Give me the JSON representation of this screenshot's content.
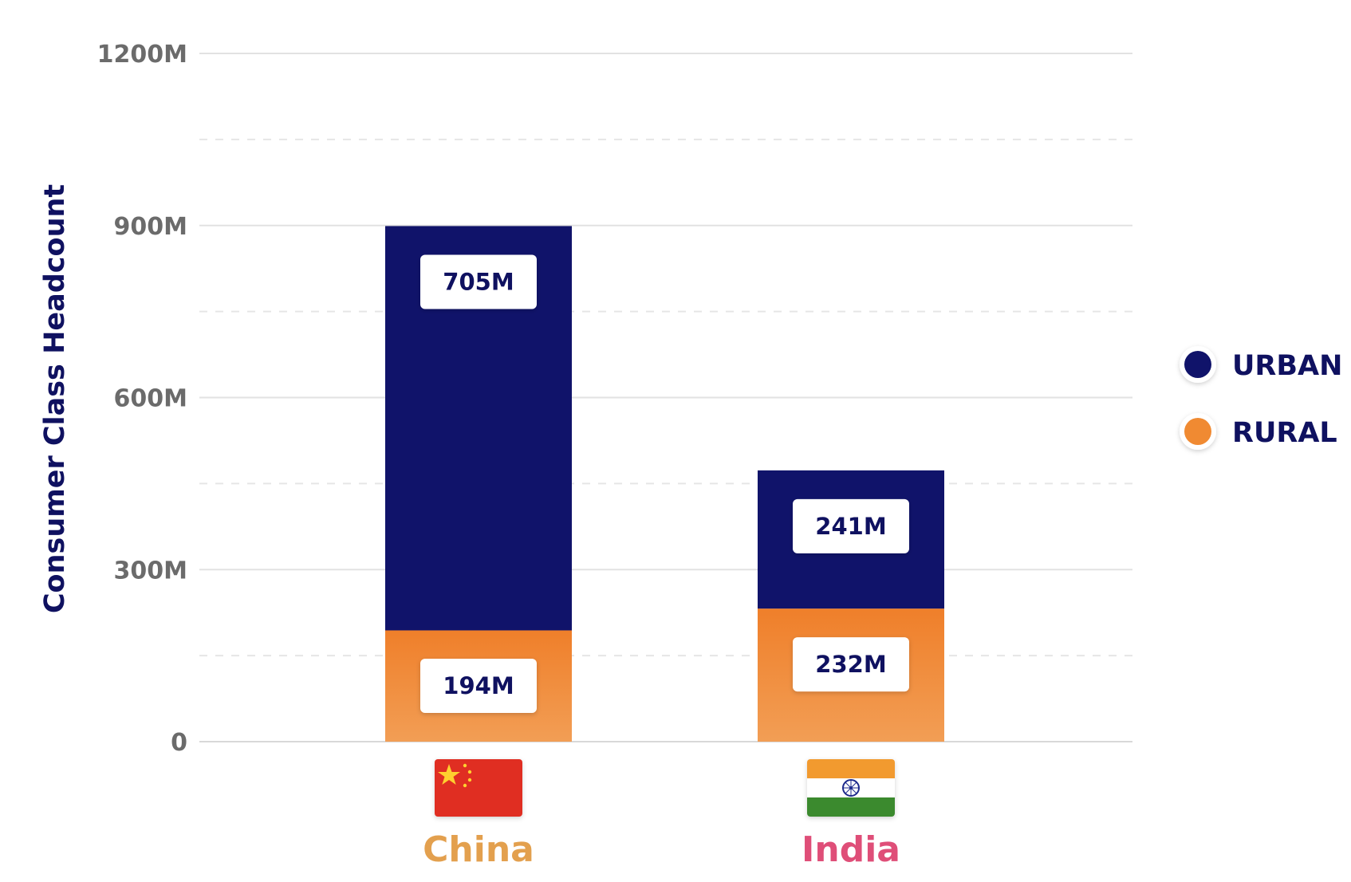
{
  "chart_data": {
    "type": "bar",
    "stacked": true,
    "ylabel": "Consumer Class Headcount",
    "ylim": [
      0,
      1200
    ],
    "y_ticks": [
      {
        "value": 0,
        "label": "0"
      },
      {
        "value": 300,
        "label": "300M"
      },
      {
        "value": 600,
        "label": "600M"
      },
      {
        "value": 900,
        "label": "900M"
      },
      {
        "value": 1200,
        "label": "1200M"
      }
    ],
    "grid": true,
    "legend_position": "right",
    "categories": [
      "China",
      "India"
    ],
    "category_colors": [
      "#e3a04e",
      "#df4e78"
    ],
    "category_icons": [
      "china-flag-icon",
      "india-flag-icon"
    ],
    "series": [
      {
        "name": "RURAL",
        "values": [
          194,
          232
        ],
        "labels": [
          "194M",
          "232M"
        ],
        "color": "#f08a32"
      },
      {
        "name": "URBAN",
        "values": [
          705,
          241
        ],
        "labels": [
          "705M",
          "241M"
        ],
        "color": "#10136a"
      }
    ]
  }
}
